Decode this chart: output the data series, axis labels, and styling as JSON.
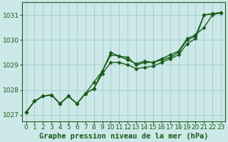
{
  "xlabel": "Graphe pression niveau de la mer (hPa)",
  "bg_color": "#cce8e8",
  "grid_color": "#aacccc",
  "line_color": "#1a5c1a",
  "x": [
    0,
    1,
    2,
    3,
    4,
    5,
    6,
    7,
    8,
    9,
    10,
    11,
    12,
    13,
    14,
    15,
    16,
    17,
    18,
    19,
    20,
    21,
    22,
    23
  ],
  "y_line1": [
    1027.1,
    1027.55,
    1027.75,
    1027.8,
    1027.45,
    1027.75,
    1027.45,
    1027.85,
    1028.05,
    1028.75,
    1029.4,
    1029.35,
    1029.3,
    1029.0,
    1029.1,
    1029.1,
    1029.2,
    1029.3,
    1029.5,
    1030.0,
    1030.15,
    1031.0,
    1031.05,
    1031.1
  ],
  "y_line2": [
    1027.1,
    1027.55,
    1027.75,
    1027.8,
    1027.45,
    1027.75,
    1027.45,
    1027.85,
    1028.3,
    1028.75,
    1029.5,
    1029.35,
    1029.2,
    1029.05,
    1029.15,
    1029.1,
    1029.25,
    1029.4,
    1029.55,
    1030.05,
    1030.2,
    1030.5,
    1031.0,
    1031.1
  ],
  "y_line3": [
    1027.1,
    1027.55,
    1027.75,
    1027.8,
    1027.45,
    1027.75,
    1027.45,
    1027.85,
    1028.05,
    1028.65,
    1029.1,
    1029.1,
    1029.0,
    1028.85,
    1028.9,
    1028.95,
    1029.1,
    1029.25,
    1029.4,
    1029.85,
    1030.05,
    1031.0,
    1031.05,
    1031.1
  ],
  "ylim": [
    1026.75,
    1031.5
  ],
  "yticks": [
    1027,
    1028,
    1029,
    1030,
    1031
  ],
  "xticks": [
    0,
    1,
    2,
    3,
    4,
    5,
    6,
    7,
    8,
    9,
    10,
    11,
    12,
    13,
    14,
    15,
    16,
    17,
    18,
    19,
    20,
    21,
    22,
    23
  ],
  "marker_size": 2.5,
  "line_width": 1.0,
  "xlabel_fontsize": 7.5,
  "tick_fontsize": 6.5
}
